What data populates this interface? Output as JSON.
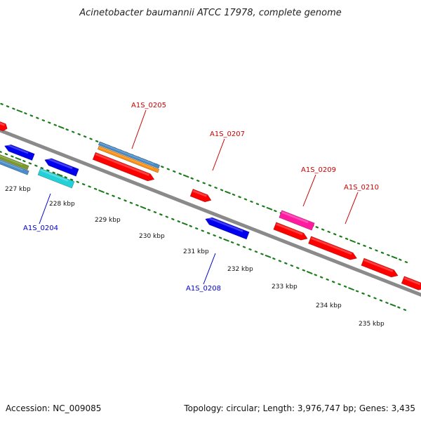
{
  "title": "Acinetobacter baumannii ATCC 17978, complete genome",
  "footer": {
    "accession": "Accession: NC_009085",
    "summary": "Topology: circular; Length: 3,976,747 bp; Genes: 3,435"
  },
  "scale_labels": [
    "227 kbp",
    "228 kbp",
    "229 kbp",
    "230 kbp",
    "231 kbp",
    "232 kbp",
    "233 kbp",
    "234 kbp",
    "235 kbp"
  ],
  "gene_labels": [
    {
      "text": "A1S_0204",
      "strand": "reverse"
    },
    {
      "text": "A1S_0205",
      "strand": "forward"
    },
    {
      "text": "A1S_0207",
      "strand": "forward"
    },
    {
      "text": "A1S_0208",
      "strand": "reverse"
    },
    {
      "text": "A1S_0209",
      "strand": "forward"
    },
    {
      "text": "A1S_0210",
      "strand": "forward"
    }
  ],
  "colors": {
    "backbone": "#8a8a8a",
    "tick": "#1a7a1a",
    "forward_label": "#cc0000",
    "reverse_label": "#0000cc",
    "cds_forward": "#ff0000",
    "cds_reverse": "#0000ee",
    "feature_magenta": "#ff1aa0",
    "feature_cyan": "#22d0d8",
    "feature_steelblue": "#4a8cc8",
    "feature_orange": "#ff9010",
    "feature_olive": "#7a9a2a"
  }
}
